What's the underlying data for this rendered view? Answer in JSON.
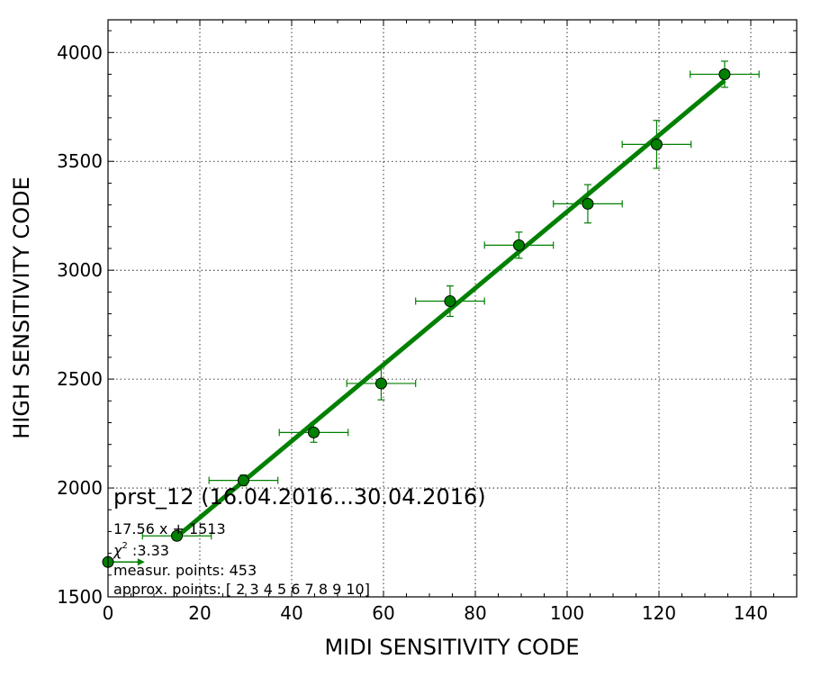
{
  "chart_data": {
    "type": "scatter",
    "xlabel": "MIDI SENSITIVITY CODE",
    "ylabel": "HIGH SENSITIVITY CODE",
    "xlim": [
      0,
      150
    ],
    "ylim": [
      1500,
      4150
    ],
    "x_ticks": [
      0,
      20,
      40,
      60,
      80,
      100,
      120,
      140
    ],
    "y_ticks": [
      1500,
      2000,
      2500,
      3000,
      3500,
      4000
    ],
    "grid": true,
    "colors": {
      "marker": "#008000",
      "line": "#008000",
      "marker_edge": "#000000"
    },
    "points": [
      {
        "x": 0,
        "y": 1660,
        "xerr": 0,
        "yerr": 0
      },
      {
        "x": 15,
        "y": 1780,
        "xerr": 7.5,
        "yerr": 10
      },
      {
        "x": 29.5,
        "y": 2035,
        "xerr": 7.5,
        "yerr": 25
      },
      {
        "x": 44.8,
        "y": 2255,
        "xerr": 7.5,
        "yerr": 45
      },
      {
        "x": 59.5,
        "y": 2480,
        "xerr": 7.5,
        "yerr": 75
      },
      {
        "x": 74.5,
        "y": 2858,
        "xerr": 7.5,
        "yerr": 70
      },
      {
        "x": 89.5,
        "y": 3115,
        "xerr": 7.5,
        "yerr": 60
      },
      {
        "x": 104.5,
        "y": 3305,
        "xerr": 7.5,
        "yerr": 88
      },
      {
        "x": 119.5,
        "y": 3578,
        "xerr": 7.5,
        "yerr": 110
      },
      {
        "x": 134.3,
        "y": 3900,
        "xerr": 7.5,
        "yerr": 60
      }
    ],
    "fit": {
      "slope": 17.56,
      "intercept": 1513,
      "x_range": [
        15,
        134.3
      ]
    },
    "arrow_point": {
      "x": 0,
      "y": 1660,
      "arrow_to_x": 8
    }
  },
  "annotations": {
    "title": "prst_12 (16.04.2016...30.04.2016)",
    "fit_text": "17.56 x + 1513",
    "chi_symbol": "χ",
    "chi_exp": "2",
    "chi_value": " :3.33",
    "measur_points": "measur. points: 453",
    "approx_points": "approx. points: [ 2  3  4  5  6  7  8  9 10]"
  }
}
